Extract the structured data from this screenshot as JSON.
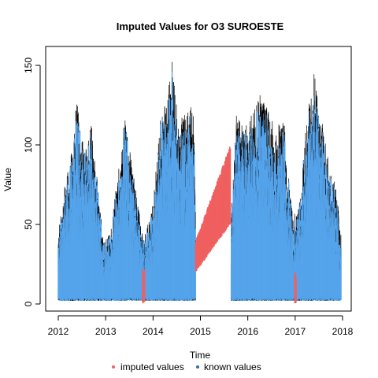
{
  "chart_data": {
    "type": "line",
    "title": "Imputed Values for  O3 SUROESTE",
    "xlabel": "Time",
    "ylabel": "Value",
    "xlim": [
      2012,
      2018
    ],
    "ylim": [
      -5,
      160
    ],
    "x_ticks": [
      2012,
      2013,
      2014,
      2015,
      2016,
      2017,
      2018
    ],
    "y_ticks": [
      0,
      50,
      100,
      150
    ],
    "x_tick_labels": [
      "2012",
      "2013",
      "2014",
      "2015",
      "2016",
      "2017",
      "2018"
    ],
    "y_tick_labels": [
      "0",
      "50",
      "100",
      "150"
    ],
    "grid": false,
    "legend_position": "bottom",
    "series": [
      {
        "name": "known values",
        "color": "#56a5ec",
        "annual_envelope": [
          {
            "x": 2012.0,
            "min": 3,
            "max": 45
          },
          {
            "x": 2012.1,
            "min": 3,
            "max": 70
          },
          {
            "x": 2012.25,
            "min": 3,
            "max": 90
          },
          {
            "x": 2012.4,
            "min": 3,
            "max": 130
          },
          {
            "x": 2012.55,
            "min": 3,
            "max": 95
          },
          {
            "x": 2012.7,
            "min": 3,
            "max": 115
          },
          {
            "x": 2012.85,
            "min": 3,
            "max": 70
          },
          {
            "x": 2012.95,
            "min": 3,
            "max": 40
          },
          {
            "x": 2013.1,
            "min": 3,
            "max": 45
          },
          {
            "x": 2013.25,
            "min": 3,
            "max": 80
          },
          {
            "x": 2013.4,
            "min": 3,
            "max": 118
          },
          {
            "x": 2013.55,
            "min": 3,
            "max": 90
          },
          {
            "x": 2013.7,
            "min": 3,
            "max": 60
          },
          {
            "x": 2013.8,
            "min": 3,
            "max": 40
          },
          {
            "x": 2014.0,
            "min": 3,
            "max": 65
          },
          {
            "x": 2014.15,
            "min": 3,
            "max": 115
          },
          {
            "x": 2014.3,
            "min": 3,
            "max": 130
          },
          {
            "x": 2014.4,
            "min": 3,
            "max": 155
          },
          {
            "x": 2014.55,
            "min": 3,
            "max": 115
          },
          {
            "x": 2014.7,
            "min": 3,
            "max": 120
          },
          {
            "x": 2014.85,
            "min": 3,
            "max": 130
          },
          {
            "x": 2014.9,
            "min": 3,
            "max": 60
          },
          {
            "x": 2015.65,
            "min": 3,
            "max": 55
          },
          {
            "x": 2015.75,
            "min": 3,
            "max": 120
          },
          {
            "x": 2015.9,
            "min": 3,
            "max": 115
          },
          {
            "x": 2016.1,
            "min": 3,
            "max": 120
          },
          {
            "x": 2016.3,
            "min": 3,
            "max": 135
          },
          {
            "x": 2016.45,
            "min": 3,
            "max": 120
          },
          {
            "x": 2016.6,
            "min": 3,
            "max": 110
          },
          {
            "x": 2016.75,
            "min": 3,
            "max": 120
          },
          {
            "x": 2016.95,
            "min": 3,
            "max": 55
          },
          {
            "x": 2017.1,
            "min": 3,
            "max": 65
          },
          {
            "x": 2017.25,
            "min": 3,
            "max": 120
          },
          {
            "x": 2017.4,
            "min": 3,
            "max": 145
          },
          {
            "x": 2017.55,
            "min": 3,
            "max": 120
          },
          {
            "x": 2017.7,
            "min": 3,
            "max": 90
          },
          {
            "x": 2017.85,
            "min": 3,
            "max": 75
          },
          {
            "x": 2017.97,
            "min": 3,
            "max": 45
          }
        ]
      },
      {
        "name": "imputed values",
        "color": "#f06060",
        "segments": [
          {
            "x_start": 2013.78,
            "x_end": 2013.82,
            "y_min": 0,
            "y_max": 22
          },
          {
            "x_start": 2014.9,
            "x_end": 2015.63,
            "y_min_start": 20,
            "y_max_start": 40,
            "y_min_end": 50,
            "y_max_end": 100
          },
          {
            "x_start": 2016.99,
            "x_end": 2017.02,
            "y_min": 0,
            "y_max": 20
          }
        ]
      }
    ]
  }
}
